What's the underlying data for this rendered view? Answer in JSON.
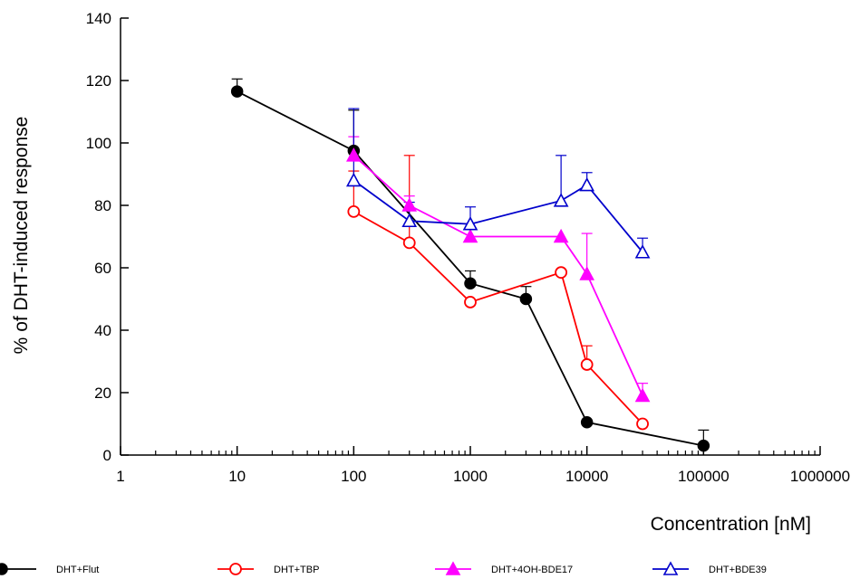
{
  "chart_data": {
    "type": "line",
    "title": "",
    "xlabel": "Concentration  [nM]",
    "ylabel": "% of DHT-induced response",
    "x_scale": "log",
    "xlim": [
      1,
      1000000
    ],
    "ylim": [
      0,
      140
    ],
    "x_ticks": [
      1,
      10,
      100,
      1000,
      10000,
      100000,
      1000000
    ],
    "x_tick_labels": [
      "1",
      "10",
      "100",
      "1000",
      "10000",
      "100000",
      "1000000"
    ],
    "y_ticks": [
      0,
      20,
      40,
      60,
      80,
      100,
      120,
      140
    ],
    "y_tick_labels": [
      "0",
      "20",
      "40",
      "60",
      "80",
      "100",
      "120",
      "140"
    ],
    "grid": false,
    "legend_position": "bottom",
    "series": [
      {
        "name": "DHT+Flut",
        "color": "#000000",
        "marker": "filled-circle",
        "x": [
          10,
          100,
          1000,
          3000,
          10000,
          100000
        ],
        "y": [
          116.5,
          97.5,
          55,
          50,
          10.5,
          3
        ],
        "err": [
          4,
          13,
          4,
          4,
          0,
          5
        ]
      },
      {
        "name": "DHT+TBP",
        "color": "#ff0000",
        "marker": "open-circle",
        "x": [
          100,
          300,
          1000,
          6000,
          10000,
          30000
        ],
        "y": [
          78,
          68,
          49,
          58.5,
          29,
          10
        ],
        "err": [
          13,
          28,
          0,
          0,
          6,
          0
        ]
      },
      {
        "name": "DHT+4OH-BDE17",
        "color": "#ff00ff",
        "marker": "filled-triangle",
        "x": [
          100,
          300,
          1000,
          6000,
          10000,
          30000
        ],
        "y": [
          96,
          80,
          70,
          70,
          58,
          19
        ],
        "err": [
          6,
          3,
          0,
          0,
          13,
          4
        ]
      },
      {
        "name": "DHT+BDE39",
        "color": "#0000cc",
        "marker": "open-triangle",
        "x": [
          100,
          300,
          1000,
          6000,
          10000,
          30000
        ],
        "y": [
          88,
          75,
          74,
          81.5,
          86.5,
          65
        ],
        "err": [
          23,
          6,
          5.5,
          14.5,
          4,
          4.5
        ]
      }
    ]
  }
}
